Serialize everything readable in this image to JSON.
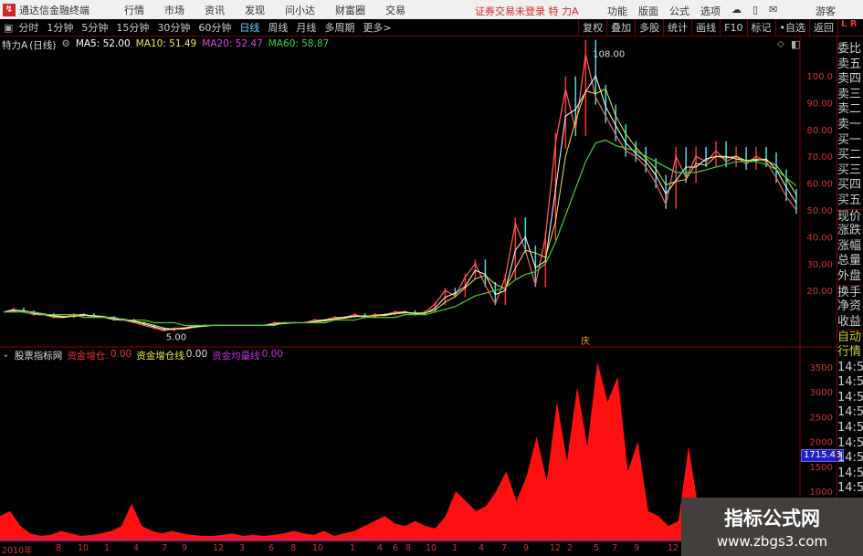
{
  "app": {
    "title": "通达信金融终端",
    "menus": [
      "行情",
      "市场",
      "资讯",
      "发现",
      "问小达",
      "财富圈",
      "交易"
    ],
    "notice": "证券交易未登录 特 力A",
    "right_menus": [
      "功能",
      "版面",
      "公式",
      "选项"
    ],
    "user": "游客"
  },
  "toolbar": {
    "periods": [
      "分时",
      "1分钟",
      "5分钟",
      "15分钟",
      "30分钟",
      "60分钟",
      "日线",
      "周线",
      "月线",
      "多周期",
      "更多>"
    ],
    "active": "日线",
    "tools": [
      "复权",
      "叠加",
      "多股",
      "统计",
      "画线",
      "F10",
      "标记",
      "•自选",
      "返回"
    ],
    "lr": "L R"
  },
  "info": {
    "stock": "特力A",
    "period": "(日线)",
    "ma5": "MA5: 52.00",
    "ma10": "MA10: 51.49",
    "ma20": "MA20: 52.47",
    "ma60": "MA60: 58.87"
  },
  "colors": {
    "ma5": "#ffffff",
    "ma10": "#e8e84a",
    "ma20": "#e040e0",
    "ma60": "#40d040",
    "up": "#ff3030",
    "grid": "#7a0000"
  },
  "price_axis": [
    "100.0",
    "90.00",
    "80.00",
    "70.00",
    "60.00",
    "50.00",
    "40.00",
    "30.00",
    "20.00"
  ],
  "annotations": {
    "high": "108.00",
    "low": "5.00",
    "event": "庆"
  },
  "price_series": [
    12,
    13,
    12,
    11,
    11,
    10,
    10,
    11,
    11,
    10,
    10,
    9,
    9,
    8,
    7,
    6,
    5,
    6,
    6,
    7,
    7,
    7,
    7,
    7,
    7,
    7,
    7,
    8,
    8,
    8,
    8,
    9,
    9,
    10,
    10,
    11,
    10,
    11,
    11,
    12,
    12,
    11,
    12,
    15,
    20,
    18,
    25,
    30,
    22,
    15,
    25,
    45,
    35,
    22,
    40,
    75,
    95,
    80,
    108,
    92,
    85,
    78,
    72,
    70,
    66,
    60,
    52,
    70,
    62,
    70,
    68,
    72,
    68,
    70,
    67,
    70,
    68,
    62,
    55,
    50
  ],
  "ma60_series": [
    12,
    12,
    12,
    12,
    11,
    11,
    11,
    11,
    10,
    10,
    10,
    10,
    9,
    9,
    9,
    8,
    8,
    8,
    7,
    7,
    7,
    7,
    7,
    7,
    7,
    7,
    7,
    7,
    8,
    8,
    8,
    8,
    8,
    9,
    9,
    9,
    10,
    10,
    10,
    10,
    11,
    11,
    11,
    12,
    13,
    14,
    16,
    18,
    19,
    20,
    21,
    24,
    26,
    27,
    30,
    38,
    48,
    58,
    68,
    75,
    76,
    74,
    73,
    72,
    70,
    68,
    66,
    64,
    64,
    64,
    65,
    66,
    67,
    68,
    68,
    68,
    67,
    65,
    62,
    59
  ],
  "sub": {
    "title": "股票指标网",
    "s1_label": "资金增仓:",
    "s1_val": "0.00",
    "s2_label": "资金增仓线",
    "s2_val": "0.00",
    "s3_label": "资金均量线",
    "s3_val": "0.00",
    "axis": [
      "3500",
      "3000",
      "2500",
      "2000",
      "1500",
      "1000"
    ],
    "current": "1715.45"
  },
  "sub_series": [
    500,
    600,
    300,
    150,
    100,
    120,
    200,
    150,
    100,
    120,
    150,
    200,
    300,
    750,
    300,
    200,
    150,
    200,
    150,
    120,
    100,
    100,
    120,
    150,
    100,
    120,
    100,
    120,
    150,
    200,
    150,
    120,
    200,
    100,
    150,
    200,
    300,
    400,
    500,
    350,
    300,
    400,
    300,
    250,
    500,
    1000,
    800,
    600,
    700,
    1000,
    1400,
    800,
    1300,
    2100,
    1200,
    2800,
    1600,
    3100,
    1900,
    3600,
    2800,
    3300,
    1400,
    2000,
    600,
    500,
    300,
    400,
    1900,
    600,
    500,
    400,
    300,
    250,
    200,
    150,
    100,
    100,
    80,
    60
  ],
  "xaxis": [
    "2010年",
    "8",
    "10",
    "1",
    "4",
    "7",
    "9",
    "12",
    "3",
    "6",
    "8",
    "10",
    "1",
    "4",
    "6",
    "8",
    "10",
    "1",
    "4",
    "7",
    "9",
    "12",
    "2",
    "5",
    "7",
    "9",
    "12"
  ],
  "right_panel": {
    "quote_labels": [
      "委比",
      "卖五",
      "卖四",
      "卖三",
      "卖二",
      "卖一",
      "买一",
      "买二",
      "买三",
      "买四",
      "买五",
      "现价",
      "涨跌",
      "涨幅",
      "总量",
      "外盘",
      "换手",
      "净资",
      "收益"
    ],
    "auto": [
      "自动",
      "行情"
    ],
    "times": [
      "14:5",
      "14:5",
      "14:5",
      "14:5",
      "14:5",
      "14:5",
      "14:5",
      "14:5",
      "14:5",
      "14:5"
    ]
  },
  "watermark": {
    "line1": "指标公式网",
    "line2": "www.zbgs3.com"
  }
}
